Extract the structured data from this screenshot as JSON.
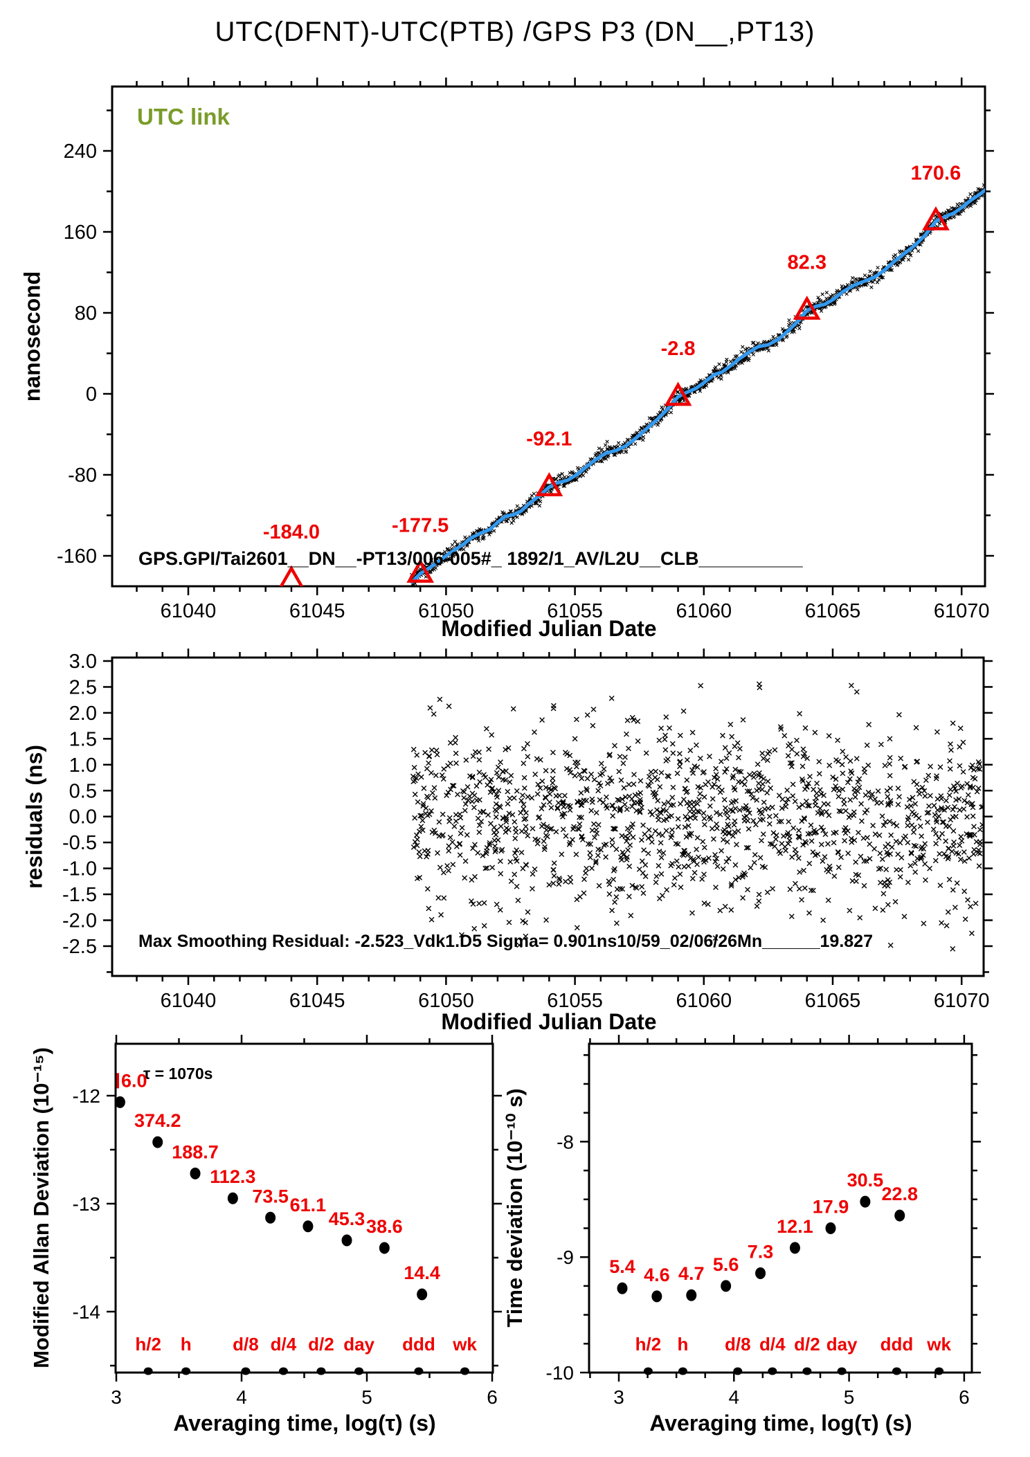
{
  "title": "UTC(DFNT)-UTC(PTB)  /GPS  P3  (DN__,PT13)",
  "colors": {
    "red": "#ee0000",
    "blue": "#3399ee",
    "olive": "#7a9c2a",
    "black": "#000000"
  },
  "annotations": {
    "utc_link": "UTC link",
    "gps_info": "GPS.GPI/Tai2601__DN__-PT13/006-005#_  1892/1_AV/L2U__CLB__________",
    "max_smoothing": "Max Smoothing Residual: -2.523_Vdk1.D5  Sigma= 0.901ns10/59_02/06/26Mn______19.827",
    "tau_note": "τ = 1070s"
  },
  "chart_data": [
    {
      "id": "main",
      "type": "line",
      "title": "UTC(DFNT)-UTC(PTB) /GPS P3 (DN__,PT13)",
      "xlabel": "Modified Julian Date",
      "ylabel": "nanosecond",
      "xlim": [
        61037.2,
        61070.95
      ],
      "ylim": [
        -190,
        303
      ],
      "grid": false,
      "xticks": [
        61040,
        61045,
        61050,
        61055,
        61060,
        61065,
        61070
      ],
      "xtick_labels": [
        "61040",
        "61045",
        "61050",
        "61055",
        "61060",
        "61065",
        "61070"
      ],
      "yticks": [
        -160,
        -80,
        0,
        80,
        160,
        240
      ],
      "ytick_labels": [
        "-160",
        "-80",
        "0",
        "80",
        "160",
        "240"
      ],
      "line_points": [
        [
          61048.68,
          -186
        ],
        [
          61049.0,
          -177.5
        ],
        [
          61049.35,
          -172
        ],
        [
          61049.7,
          -166
        ],
        [
          61050.0,
          -160
        ],
        [
          61050.35,
          -154
        ],
        [
          61050.7,
          -148
        ],
        [
          61051.0,
          -142
        ],
        [
          61051.35,
          -137.5
        ],
        [
          61051.7,
          -134
        ],
        [
          61052.0,
          -127
        ],
        [
          61052.3,
          -121
        ],
        [
          61052.6,
          -119.5
        ],
        [
          61052.9,
          -116
        ],
        [
          61053.2,
          -109
        ],
        [
          61053.6,
          -101
        ],
        [
          61054.0,
          -92.1
        ],
        [
          61054.3,
          -88
        ],
        [
          61054.7,
          -85.5
        ],
        [
          61055.0,
          -81
        ],
        [
          61055.4,
          -73
        ],
        [
          61055.8,
          -65
        ],
        [
          61056.2,
          -58.5
        ],
        [
          61056.6,
          -56
        ],
        [
          61057.0,
          -51
        ],
        [
          61057.4,
          -43
        ],
        [
          61057.8,
          -34
        ],
        [
          61058.2,
          -25
        ],
        [
          61058.6,
          -15
        ],
        [
          61059.0,
          -2.8
        ],
        [
          61059.3,
          1
        ],
        [
          61059.7,
          5.5
        ],
        [
          61060.0,
          11
        ],
        [
          61060.4,
          19
        ],
        [
          61060.7,
          21.5
        ],
        [
          61061.0,
          27
        ],
        [
          61061.4,
          35
        ],
        [
          61061.8,
          42
        ],
        [
          61062.1,
          46.5
        ],
        [
          61062.5,
          48.5
        ],
        [
          61062.9,
          54
        ],
        [
          61063.3,
          63
        ],
        [
          61063.7,
          73
        ],
        [
          61064.0,
          82.3
        ],
        [
          61064.35,
          86.5
        ],
        [
          61064.7,
          88.5
        ],
        [
          61065.0,
          93
        ],
        [
          61065.4,
          101
        ],
        [
          61065.8,
          107
        ],
        [
          61066.2,
          111
        ],
        [
          61066.6,
          115
        ],
        [
          61067.0,
          122
        ],
        [
          61067.4,
          131
        ],
        [
          61067.8,
          139
        ],
        [
          61068.2,
          147
        ],
        [
          61068.6,
          157
        ],
        [
          61069.0,
          170.6
        ],
        [
          61069.35,
          175
        ],
        [
          61069.7,
          178.5
        ],
        [
          61070.0,
          184
        ],
        [
          61070.4,
          192
        ],
        [
          61070.7,
          197
        ],
        [
          61071.05,
          204
        ]
      ],
      "scatter_spec": {
        "n": 1350,
        "sigma_ns": 3.1,
        "seed": 7
      },
      "triangles": [
        {
          "mjd": 61044,
          "value": -184.0,
          "label": "-184.0"
        },
        {
          "mjd": 61049,
          "value": -177.5,
          "label": "-177.5"
        },
        {
          "mjd": 61054,
          "value": -92.1,
          "label": "-92.1"
        },
        {
          "mjd": 61059,
          "value": -2.8,
          "label": "-2.8"
        },
        {
          "mjd": 61064,
          "value": 82.3,
          "label": "82.3"
        },
        {
          "mjd": 61069,
          "value": 170.6,
          "label": "170.6"
        }
      ]
    },
    {
      "id": "residuals",
      "type": "scatter",
      "xlabel": "Modified Julian Date",
      "ylabel": "residuals (ns)",
      "xlim": [
        61037.2,
        61070.9
      ],
      "ylim": [
        -3.07,
        3.07
      ],
      "grid": false,
      "xticks": [
        61040,
        61045,
        61050,
        61055,
        61060,
        61065,
        61070
      ],
      "xtick_labels": [
        "61040",
        "61045",
        "61050",
        "61055",
        "61060",
        "61065",
        "61070"
      ],
      "yticks": [
        3.0,
        2.5,
        2.0,
        1.5,
        1.0,
        0.5,
        0.0,
        -0.5,
        -1.0,
        -1.5,
        -2.0,
        -2.5
      ],
      "ytick_labels": [
        "3.0",
        "2.5",
        "2.0",
        "1.5",
        "1.0",
        "0.5",
        "0.0",
        "-0.5",
        "-1.0",
        "-1.5",
        "-2.0",
        "-2.5"
      ],
      "scatter_spec": {
        "n": 1380,
        "xmin": 61048.68,
        "xmax": 61071.05,
        "sigma": 0.88,
        "clip": 2.56,
        "seed": 13
      }
    },
    {
      "id": "mdev",
      "type": "scatter",
      "xlabel": "Averaging time, log(τ) (s)",
      "ylabel": "Modified Allan Deviation (10⁻¹⁵)",
      "xlim": [
        3.0,
        6.01
      ],
      "ylim": [
        -14.56,
        -11.52
      ],
      "grid": false,
      "xticks": [
        3,
        4,
        5,
        6
      ],
      "xtick_labels": [
        "3",
        "4",
        "5",
        "6"
      ],
      "yticks": [
        -12,
        -13,
        -14
      ],
      "ytick_labels": [
        "-12",
        "-13",
        "-14"
      ],
      "points": [
        {
          "logtau": 3.03,
          "logdev": -12.06,
          "label": "6.0",
          "clipped": true
        },
        {
          "logtau": 3.33,
          "logdev": -12.43,
          "label": "374.2"
        },
        {
          "logtau": 3.63,
          "logdev": -12.72,
          "label": "188.7"
        },
        {
          "logtau": 3.93,
          "logdev": -12.95,
          "label": "112.3"
        },
        {
          "logtau": 4.23,
          "logdev": -13.13,
          "label": "73.5"
        },
        {
          "logtau": 4.53,
          "logdev": -13.21,
          "label": "61.1"
        },
        {
          "logtau": 4.84,
          "logdev": -13.34,
          "label": "45.3"
        },
        {
          "logtau": 5.14,
          "logdev": -13.41,
          "label": "38.6"
        },
        {
          "logtau": 5.44,
          "logdev": -13.84,
          "label": "14.4"
        }
      ],
      "time_markers": [
        {
          "label": "h/2",
          "logtau": 3.255
        },
        {
          "label": "h",
          "logtau": 3.556
        },
        {
          "label": "d/8",
          "logtau": 4.033
        },
        {
          "label": "d/4",
          "logtau": 4.334
        },
        {
          "label": "d/2",
          "logtau": 4.635
        },
        {
          "label": "day",
          "logtau": 4.937
        },
        {
          "label": "ddd",
          "logtau": 5.414
        },
        {
          "label": "wk",
          "logtau": 5.782
        }
      ]
    },
    {
      "id": "tdev",
      "type": "scatter",
      "xlabel": "Averaging time, log(τ) (s)",
      "ylabel": "Time deviation (10⁻¹⁰ s)",
      "xlim": [
        2.74,
        6.07
      ],
      "ylim": [
        -10.0,
        -7.15
      ],
      "grid": false,
      "xticks": [
        3,
        4,
        5,
        6
      ],
      "xtick_labels": [
        "3",
        "4",
        "5",
        "6"
      ],
      "yticks": [
        -8,
        -9,
        -10
      ],
      "ytick_labels": [
        "-8",
        "-9",
        "-10"
      ],
      "points": [
        {
          "logtau": 3.03,
          "logdev": -9.27,
          "label": "5.4"
        },
        {
          "logtau": 3.33,
          "logdev": -9.34,
          "label": "4.6"
        },
        {
          "logtau": 3.63,
          "logdev": -9.33,
          "label": "4.7"
        },
        {
          "logtau": 3.93,
          "logdev": -9.25,
          "label": "5.6"
        },
        {
          "logtau": 4.23,
          "logdev": -9.14,
          "label": "7.3"
        },
        {
          "logtau": 4.53,
          "logdev": -8.92,
          "label": "12.1"
        },
        {
          "logtau": 4.84,
          "logdev": -8.75,
          "label": "17.9"
        },
        {
          "logtau": 5.14,
          "logdev": -8.52,
          "label": "30.5"
        },
        {
          "logtau": 5.44,
          "logdev": -8.64,
          "label": "22.8"
        }
      ],
      "time_markers": [
        {
          "label": "h/2",
          "logtau": 3.255
        },
        {
          "label": "h",
          "logtau": 3.556
        },
        {
          "label": "d/8",
          "logtau": 4.033
        },
        {
          "label": "d/4",
          "logtau": 4.334
        },
        {
          "label": "d/2",
          "logtau": 4.635
        },
        {
          "label": "day",
          "logtau": 4.937
        },
        {
          "label": "ddd",
          "logtau": 5.414
        },
        {
          "label": "wk",
          "logtau": 5.782
        }
      ]
    }
  ]
}
